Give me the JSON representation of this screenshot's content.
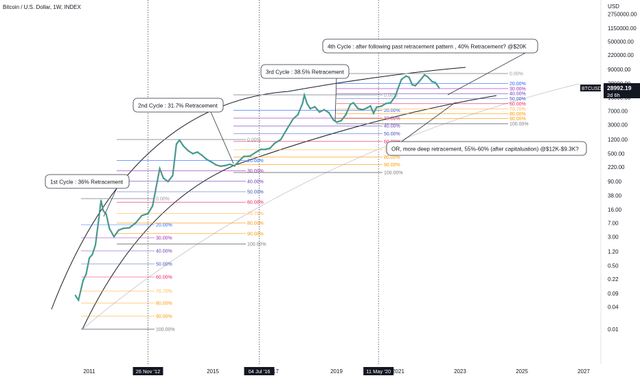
{
  "chart_data": {
    "type": "line",
    "title": "Bitcoin / U.S. Dollar, 1W, INDEX",
    "currency": "USD",
    "scale": "log",
    "grid": false,
    "symbol_badge": "BTCUSD",
    "last_price": "28992.19",
    "countdown": "2d 6h",
    "y_ticks": [
      "2750000.00",
      "1150000.00",
      "500000.00",
      "220000.00",
      "90000.00",
      "38000.00",
      "16000.00",
      "7000.00",
      "3000.00",
      "1200.00",
      "500.00",
      "220.00",
      "90.00",
      "38.00",
      "16.00",
      "7.00",
      "3.00",
      "1.20",
      "0.50",
      "0.22",
      "0.09",
      "0.04",
      "0.01"
    ],
    "x_ticks": [
      "2011",
      "2015",
      "2019",
      "2021",
      "2023",
      "2025",
      "2027"
    ],
    "x_markers": [
      "26 Nov '12",
      "04 Jul '16",
      "11 May '20"
    ],
    "x_marker_partial_text": [
      "17"
    ],
    "series": [
      {
        "x": [
          2010.55,
          2010.65,
          2010.8,
          2010.9,
          2011.0,
          2011.1,
          2011.2,
          2011.3,
          2011.38,
          2011.45,
          2011.55,
          2011.65,
          2011.8,
          2011.95,
          2012.1,
          2012.3,
          2012.5,
          2012.7,
          2012.9,
          2013.05,
          2013.2,
          2013.28,
          2013.4,
          2013.55,
          2013.7,
          2013.82,
          2013.92,
          2014.05,
          2014.2,
          2014.35,
          2014.5,
          2014.65,
          2014.8,
          2014.95,
          2015.1,
          2015.25,
          2015.4,
          2015.55,
          2015.7,
          2015.85,
          2016.0,
          2016.2,
          2016.4,
          2016.55,
          2016.7,
          2016.85,
          2017.0,
          2017.2,
          2017.4,
          2017.6,
          2017.75,
          2017.9,
          2017.96,
          2018.05,
          2018.15,
          2018.3,
          2018.45,
          2018.6,
          2018.75,
          2018.9,
          2019.0,
          2019.15,
          2019.3,
          2019.45,
          2019.55,
          2019.7,
          2019.85,
          2020.0,
          2020.1,
          2020.2,
          2020.3,
          2020.45,
          2020.6,
          2020.75,
          2020.9,
          2021.0,
          2021.1,
          2021.25,
          2021.35,
          2021.45,
          2021.55,
          2021.7,
          2021.85,
          2021.95,
          2022.1,
          2022.2,
          2022.32
        ],
        "values": [
          0.08,
          0.06,
          0.2,
          0.3,
          0.8,
          1.0,
          1.8,
          8.0,
          28.0,
          15.0,
          12.0,
          5.0,
          3.0,
          4.5,
          5.0,
          5.2,
          7.0,
          11.0,
          12.5,
          20.0,
          90.0,
          200.0,
          110.0,
          90.0,
          130.0,
          900.0,
          1150.0,
          800.0,
          600.0,
          500.0,
          550.0,
          450.0,
          350.0,
          300.0,
          250.0,
          230.0,
          240.0,
          260.0,
          235.0,
          320.0,
          420.0,
          430.0,
          550.0,
          650.0,
          650.0,
          700.0,
          950.0,
          1200.0,
          2300.0,
          4300.0,
          5500.0,
          11000.0,
          18500.0,
          11000.0,
          8000.0,
          9000.0,
          6500.0,
          7500.0,
          6300.0,
          4000.0,
          3500.0,
          3800.0,
          5500.0,
          10500.0,
          11500.0,
          8000.0,
          7500.0,
          8500.0,
          9500.0,
          6000.0,
          8800.0,
          9300.0,
          11000.0,
          11500.0,
          17000.0,
          29000.0,
          48000.0,
          60000.0,
          55000.0,
          35000.0,
          33000.0,
          45000.0,
          64000.0,
          57000.0,
          42000.0,
          40000.0,
          28992.19
        ]
      }
    ],
    "fib_label_groups": [
      [
        "0.00%",
        "20.00%",
        "30.00%",
        "40.00%",
        "50.00%",
        "60.00%",
        "70.70%",
        "80.00%",
        "90.00%",
        "100.00%"
      ],
      [
        "0.00%",
        "20.00%",
        "30.00%",
        "40.00%",
        "50.00%",
        "60.00%",
        "70.70%",
        "80.00%",
        "90.00%",
        "100.00%"
      ],
      [
        "0.00%",
        "20.00%",
        "30.00%",
        "40.00%",
        "50.00%",
        "60.00%",
        "70.70%",
        "80.00%",
        "90.00%",
        "100.00%"
      ],
      [
        "0.00%",
        "20.00%",
        "30.00%",
        "40.00%",
        "50.00%",
        "60.00%",
        "70.70%",
        "80.00%",
        "90.00%",
        "100.00%"
      ]
    ],
    "fib_colors": [
      "#9598a1",
      "#2962ff",
      "#9c27b0",
      "#673ab7",
      "#3f51b5",
      "#e91e63",
      "#ffb74d",
      "#ff9800",
      "#ff9800",
      "#787b86"
    ],
    "annotations": [
      "1st Cycle : 36% Retracement",
      "2nd Cycle : 31.7% Retracement",
      "3rd Cycle : 38.5% Retracement",
      "4th Cycle : after following past retracement pattern , 40% Retracement? @$20K",
      "OR, more deep retracement, 55%-60% (after capitaluation) @$12K-$9.3K?"
    ]
  }
}
